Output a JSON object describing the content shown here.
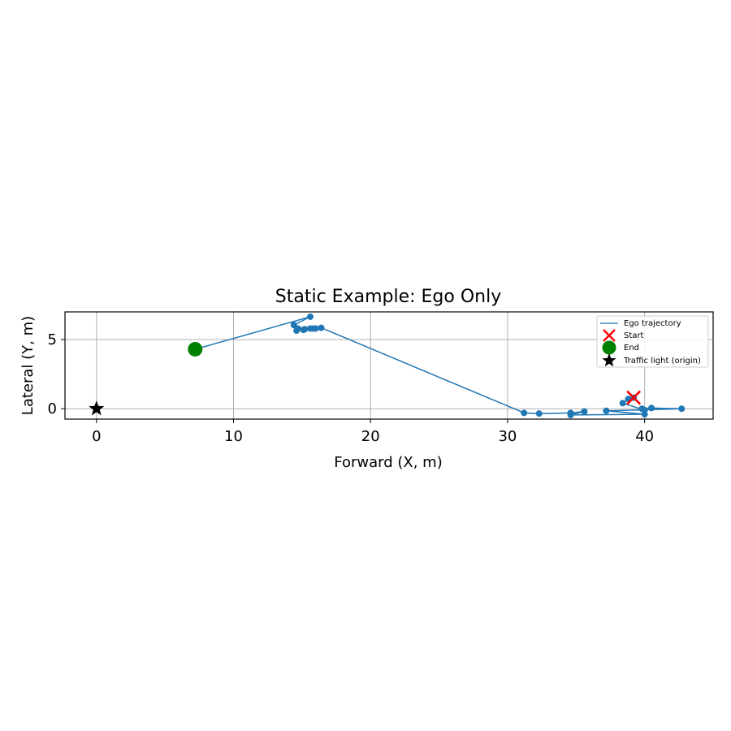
{
  "chart_data": {
    "type": "line",
    "title": "Static Example: Ego Only",
    "xlabel": "Forward (X, m)",
    "ylabel": "Lateral (Y, m)",
    "xlim": [
      -2.3,
      45
    ],
    "ylim": [
      -0.75,
      7.0
    ],
    "xticks": [
      0,
      10,
      20,
      30,
      40
    ],
    "yticks": [
      0,
      5
    ],
    "grid": true,
    "legend_position": "top-right",
    "series": [
      {
        "name": "Ego trajectory",
        "color": "#1f77b4",
        "marker": "circle",
        "points": [
          [
            39.2,
            0.8
          ],
          [
            38.8,
            0.7
          ],
          [
            38.4,
            0.4
          ],
          [
            40.0,
            -0.1
          ],
          [
            39.8,
            0.0
          ],
          [
            40.5,
            0.05
          ],
          [
            42.7,
            0.0
          ],
          [
            37.2,
            -0.15
          ],
          [
            40.0,
            -0.4
          ],
          [
            34.6,
            -0.45
          ],
          [
            35.6,
            -0.2
          ],
          [
            34.6,
            -0.3
          ],
          [
            32.3,
            -0.35
          ],
          [
            31.2,
            -0.3
          ],
          [
            16.4,
            5.85
          ],
          [
            16.0,
            5.8
          ],
          [
            15.8,
            5.8
          ],
          [
            15.6,
            5.8
          ],
          [
            15.2,
            5.75
          ],
          [
            15.1,
            5.7
          ],
          [
            14.7,
            5.8
          ],
          [
            14.6,
            5.65
          ],
          [
            14.4,
            6.05
          ],
          [
            15.6,
            6.65
          ],
          [
            7.2,
            4.3
          ]
        ]
      }
    ],
    "markers": [
      {
        "name": "Start",
        "x": 39.2,
        "y": 0.8,
        "symbol": "x",
        "color": "#ff0000"
      },
      {
        "name": "End",
        "x": 7.2,
        "y": 4.3,
        "symbol": "circle",
        "color": "#008000"
      },
      {
        "name": "Traffic light (origin)",
        "x": 0,
        "y": 0,
        "symbol": "star",
        "color": "#000000"
      }
    ]
  }
}
